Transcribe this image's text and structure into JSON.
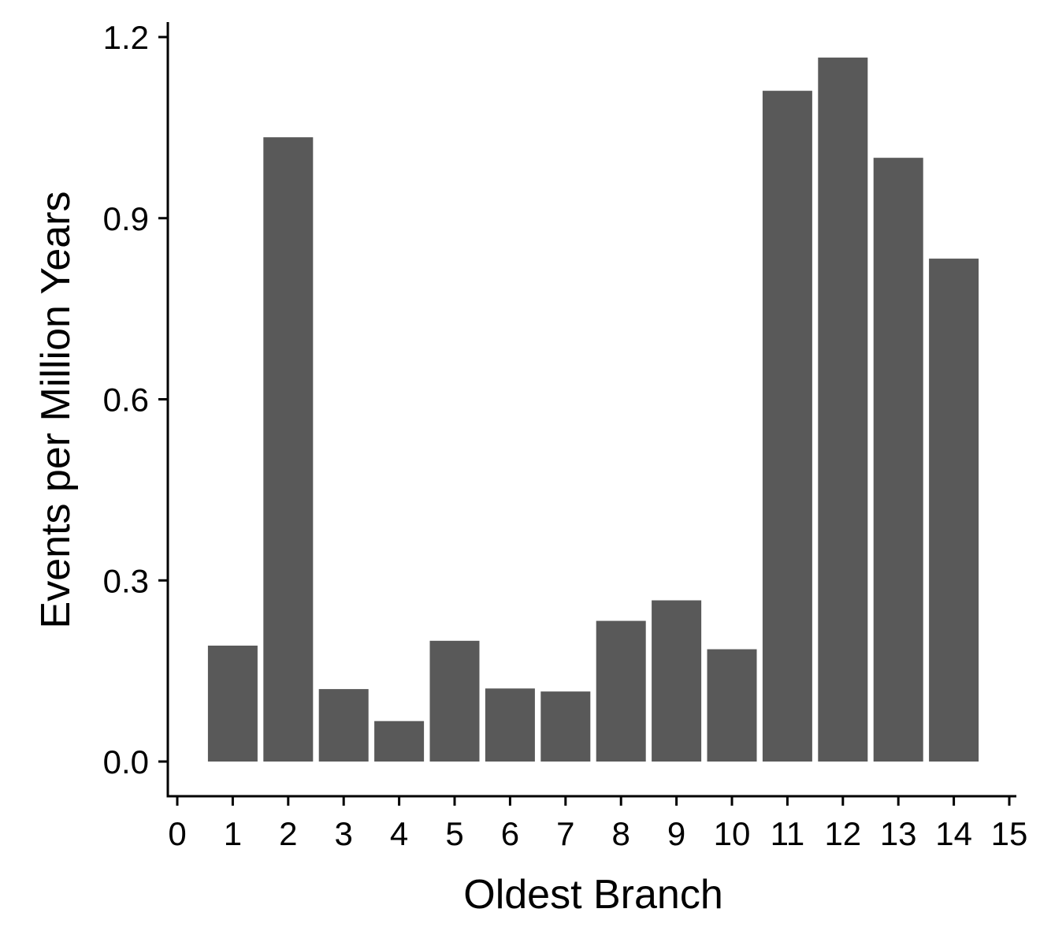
{
  "chart_data": {
    "type": "bar",
    "title": "",
    "xlabel": "Oldest Branch",
    "ylabel": "Events per Million Years",
    "x": [
      1,
      2,
      3,
      4,
      5,
      6,
      7,
      8,
      9,
      10,
      11,
      12,
      13,
      14
    ],
    "values": [
      0.192,
      1.034,
      0.12,
      0.067,
      0.2,
      0.121,
      0.116,
      0.233,
      0.267,
      0.186,
      1.111,
      1.166,
      1.0,
      0.833
    ],
    "xlim": [
      0,
      15
    ],
    "ylim": [
      -0.058,
      1.225
    ],
    "xticks": [
      "0",
      "1",
      "2",
      "3",
      "4",
      "5",
      "6",
      "7",
      "8",
      "9",
      "10",
      "11",
      "12",
      "13",
      "14",
      "15"
    ],
    "yticks": [
      "0.0",
      "0.3",
      "0.6",
      "0.9",
      "1.2"
    ],
    "bar_color": "#595959",
    "axis_color": "#000000",
    "grid": false,
    "legend": "none"
  }
}
